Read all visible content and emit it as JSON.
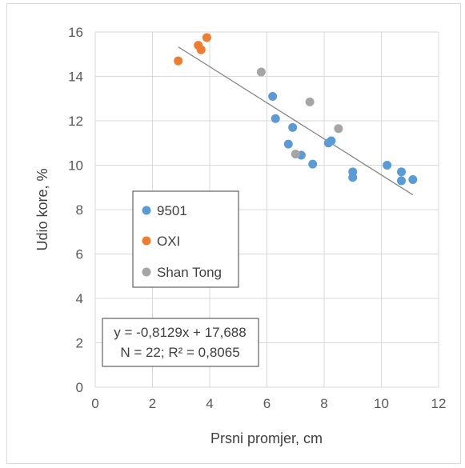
{
  "chart_data": {
    "type": "scatter",
    "xlabel": "Prsni promjer, cm",
    "ylabel": "Udio kore, %",
    "xlim": [
      0,
      12
    ],
    "ylim": [
      0,
      16
    ],
    "x_ticks": [
      "0",
      "2",
      "4",
      "6",
      "8",
      "10",
      "12"
    ],
    "y_ticks": [
      "0",
      "2",
      "4",
      "6",
      "8",
      "10",
      "12",
      "14",
      "16"
    ],
    "grid": "major gridlines on both axes",
    "legend_position": "middle-left",
    "series": [
      {
        "name": "9501",
        "color": "#5b9bd5",
        "points": [
          [
            6.2,
            13.1
          ],
          [
            6.3,
            12.1
          ],
          [
            6.9,
            11.7
          ],
          [
            6.75,
            10.95
          ],
          [
            7.2,
            10.45
          ],
          [
            7.6,
            10.05
          ],
          [
            8.15,
            11.0
          ],
          [
            8.25,
            11.1
          ],
          [
            9.0,
            9.7
          ],
          [
            9.0,
            9.45
          ],
          [
            10.2,
            10.0
          ],
          [
            10.7,
            9.7
          ],
          [
            10.7,
            9.3
          ],
          [
            11.1,
            9.35
          ]
        ]
      },
      {
        "name": "OXI",
        "color": "#ed7d31",
        "points": [
          [
            2.9,
            14.7
          ],
          [
            3.6,
            15.4
          ],
          [
            3.7,
            15.2
          ],
          [
            3.9,
            15.75
          ]
        ]
      },
      {
        "name": "Shan Tong",
        "color": "#a5a5a5",
        "points": [
          [
            5.8,
            14.2
          ],
          [
            7.5,
            12.85
          ],
          [
            8.5,
            11.65
          ],
          [
            7.0,
            10.5
          ]
        ]
      }
    ],
    "trendline": {
      "slope": -0.8129,
      "intercept": 17.688,
      "x_range": [
        2.9,
        11.1
      ],
      "color": "#7f7f7f"
    },
    "annotation": {
      "line1": "y = -0,8129x + 17,688",
      "line2": "N = 22; R² = 0,8065"
    }
  }
}
